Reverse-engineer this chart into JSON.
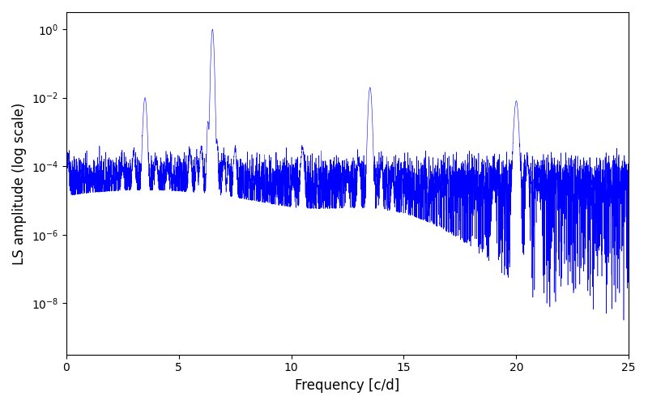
{
  "title": "",
  "xlabel": "Frequency [c/d]",
  "ylabel": "LS amplitude (log scale)",
  "xlim": [
    0,
    25
  ],
  "ylim_log_min": -9.5,
  "ylim_log_max": 0.5,
  "xticks": [
    0,
    5,
    10,
    15,
    20,
    25
  ],
  "line_color": "#0000ff",
  "background_color": "#ffffff",
  "figsize": [
    8.0,
    5.0
  ],
  "dpi": 100,
  "noise_floor": 5e-05,
  "seed": 12345,
  "n_points": 5000
}
